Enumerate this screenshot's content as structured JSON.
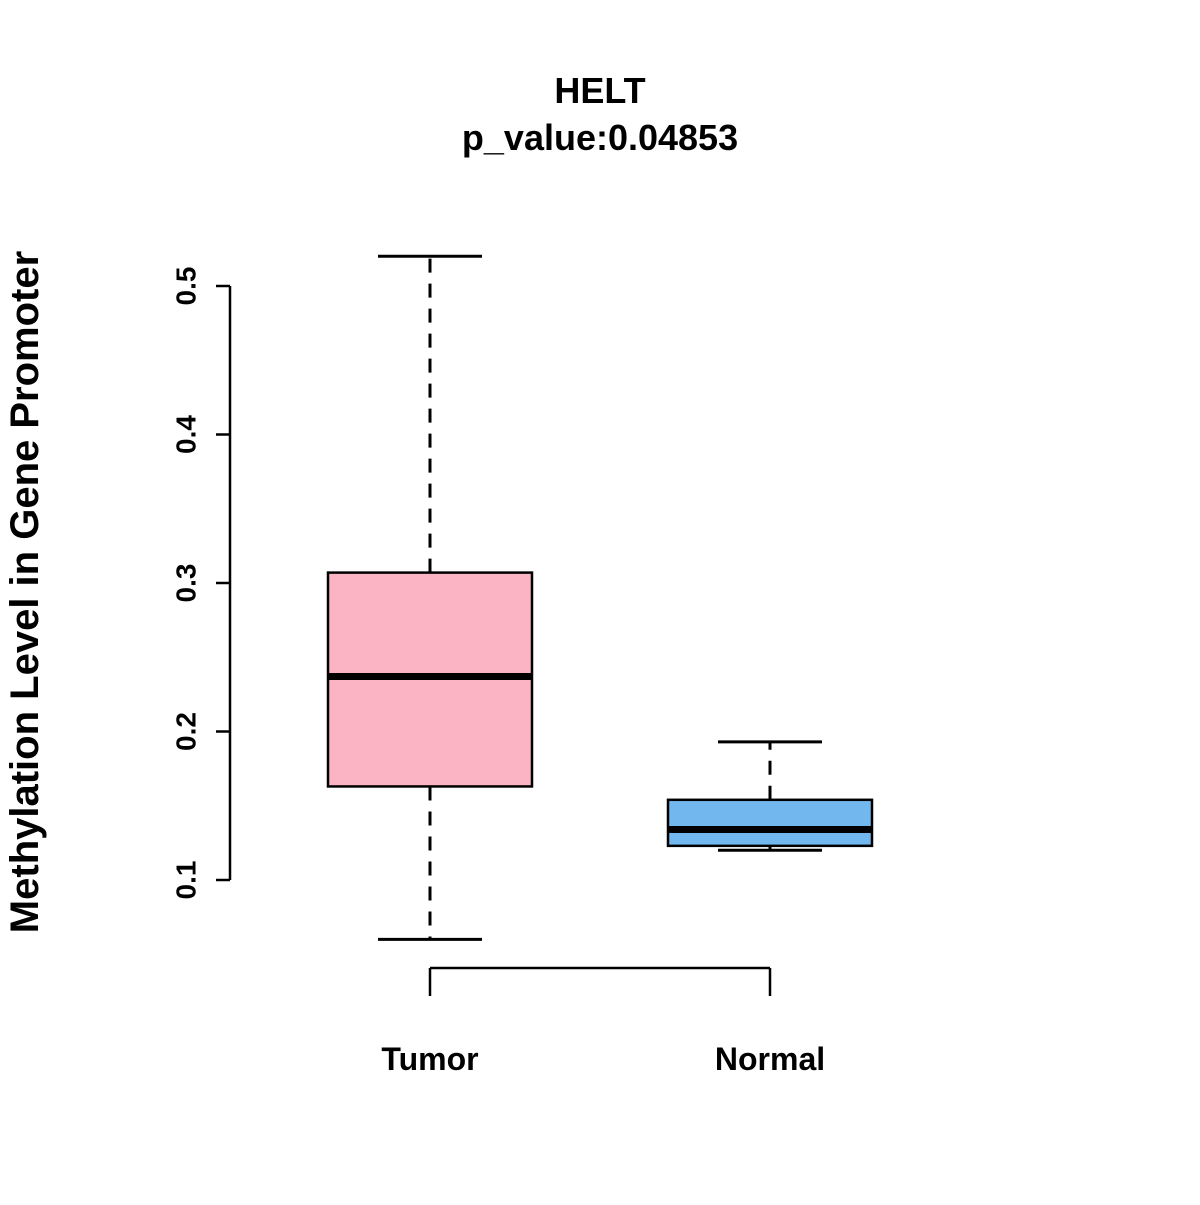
{
  "chart_data": {
    "type": "boxplot",
    "title": "HELT",
    "subtitle": "p_value:0.04853",
    "ylabel": "Methylation Level in Gene Promoter",
    "xlabel": "",
    "categories": [
      "Tumor",
      "Normal"
    ],
    "yaxis": {
      "min": 0.1,
      "max": 0.5,
      "ticks": [
        0.1,
        0.2,
        0.3,
        0.4,
        0.5
      ],
      "tick_labels": [
        "0.1",
        "0.2",
        "0.3",
        "0.4",
        "0.5"
      ]
    },
    "grid": false,
    "legend": "none",
    "series": [
      {
        "name": "Tumor",
        "color": "#FAB4C4",
        "whisker_low": 0.06,
        "q1": 0.163,
        "median": 0.237,
        "q3": 0.307,
        "whisker_high": 0.52
      },
      {
        "name": "Normal",
        "color": "#72B8EE",
        "whisker_low": 0.12,
        "q1": 0.123,
        "median": 0.134,
        "q3": 0.154,
        "whisker_high": 0.193
      }
    ],
    "colors": {
      "box_border": "#000000",
      "median_line": "#000000",
      "whisker": "#000000",
      "axis": "#000000",
      "background": "#ffffff"
    }
  }
}
